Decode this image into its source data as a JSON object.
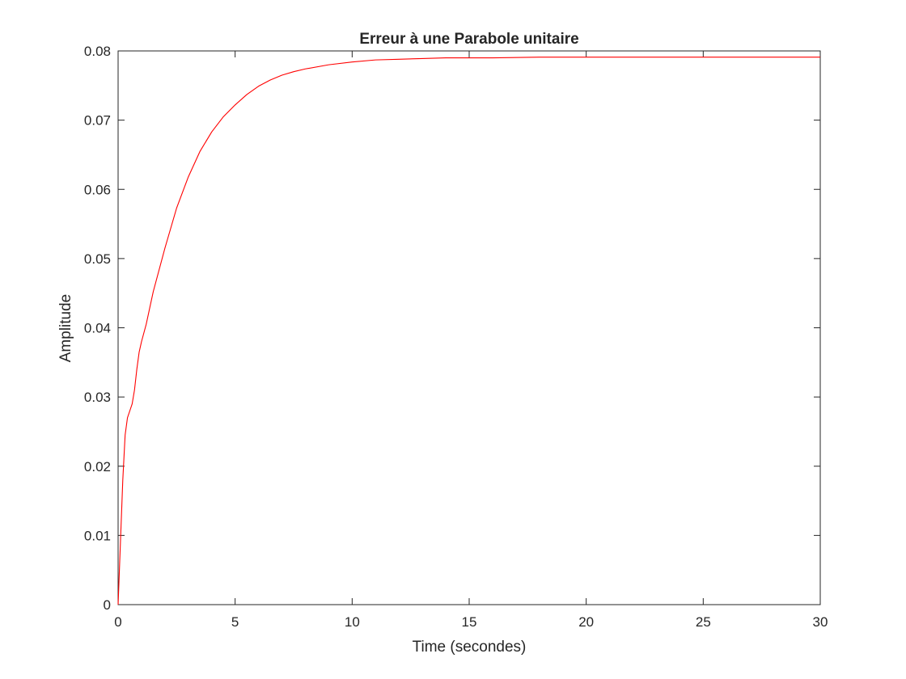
{
  "chart_data": {
    "type": "line",
    "title": "Erreur à une Parabole unitaire",
    "xlabel": "Time (secondes)",
    "ylabel": "Amplitude",
    "xlim": [
      0,
      30
    ],
    "ylim": [
      0,
      0.08
    ],
    "xticks": [
      0,
      5,
      10,
      15,
      20,
      25,
      30
    ],
    "xtick_labels": [
      "0",
      "5",
      "10",
      "15",
      "20",
      "25",
      "30"
    ],
    "yticks": [
      0,
      0.01,
      0.02,
      0.03,
      0.04,
      0.05,
      0.06,
      0.07,
      0.08
    ],
    "ytick_labels": [
      "0",
      "0.01",
      "0.02",
      "0.03",
      "0.04",
      "0.05",
      "0.06",
      "0.07",
      "0.08"
    ],
    "grid": false,
    "legend": "none",
    "series": [
      {
        "color": "#ff0000",
        "x": [
          0,
          0.1,
          0.2,
          0.3,
          0.4,
          0.5,
          0.6,
          0.7,
          0.8,
          0.9,
          1.0,
          1.2,
          1.5,
          2.0,
          2.5,
          3.0,
          3.5,
          4.0,
          4.5,
          5.0,
          5.5,
          6.0,
          6.5,
          7.0,
          7.5,
          8.0,
          9.0,
          10.0,
          11.0,
          12.0,
          13.0,
          14.0,
          15.0,
          16.0,
          18.0,
          20.0,
          22.0,
          25.0,
          28.0,
          30.0
        ],
        "y": [
          0,
          0.009,
          0.018,
          0.0245,
          0.027,
          0.028,
          0.029,
          0.031,
          0.034,
          0.0365,
          0.038,
          0.0405,
          0.0452,
          0.0515,
          0.0573,
          0.0618,
          0.0655,
          0.0683,
          0.0705,
          0.0722,
          0.0737,
          0.0749,
          0.0758,
          0.0765,
          0.077,
          0.0774,
          0.078,
          0.0784,
          0.0787,
          0.0788,
          0.0789,
          0.079,
          0.079,
          0.079,
          0.0791,
          0.0791,
          0.0791,
          0.0791,
          0.0791,
          0.0791
        ]
      }
    ]
  }
}
